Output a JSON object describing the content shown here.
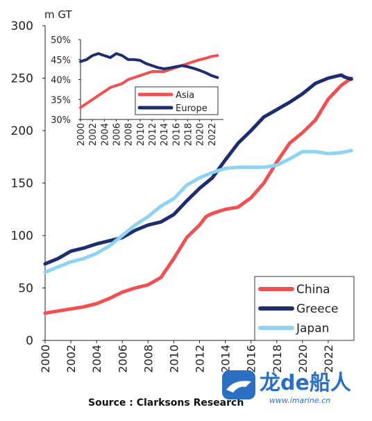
{
  "source_text": "Source : Clarksons Research",
  "watermark": {
    "brand": "龙de船人",
    "site": "www.imarine.cn"
  },
  "chart_data": [
    {
      "type": "line",
      "ylabel": "m GT",
      "ylim": [
        0,
        300
      ],
      "yticks": [
        0,
        50,
        100,
        150,
        200,
        250,
        300
      ],
      "xlim": [
        2000,
        2024
      ],
      "xticks": [
        "2000",
        "2002",
        "2004",
        "2006",
        "2008",
        "2010",
        "2012",
        "2014",
        "2016",
        "2018",
        "2020",
        "2022"
      ],
      "grid": false,
      "legend_position": "bottom-right",
      "series": [
        {
          "name": "China",
          "color": "#f05050",
          "x": [
            2000,
            2001,
            2002,
            2003,
            2004,
            2005,
            2006,
            2007,
            2008,
            2009,
            2010,
            2011,
            2012,
            2012.5,
            2013,
            2014,
            2015,
            2016,
            2017,
            2018,
            2019,
            2020,
            2021,
            2022,
            2023,
            2023.8
          ],
          "y": [
            26,
            28,
            30,
            32,
            35,
            40,
            46,
            50,
            53,
            60,
            78,
            98,
            110,
            118,
            121,
            125,
            127,
            136,
            150,
            170,
            188,
            198,
            210,
            230,
            243,
            250
          ]
        },
        {
          "name": "Greece",
          "color": "#1e2d6e",
          "x": [
            2000,
            2001,
            2002,
            2003,
            2004,
            2005,
            2006,
            2007,
            2008,
            2009,
            2010,
            2011,
            2012,
            2013,
            2014,
            2015,
            2016,
            2017,
            2018,
            2019,
            2020,
            2021,
            2022,
            2023,
            2023.3,
            2023.8
          ],
          "y": [
            73,
            78,
            85,
            88,
            92,
            95,
            98,
            105,
            110,
            113,
            120,
            133,
            145,
            155,
            172,
            188,
            200,
            213,
            220,
            227,
            235,
            245,
            250,
            253,
            251,
            249
          ]
        },
        {
          "name": "Japan",
          "color": "#8fd3f0",
          "x": [
            2000,
            2001,
            2002,
            2003,
            2004,
            2005,
            2006,
            2007,
            2008,
            2009,
            2010,
            2011,
            2012,
            2013,
            2014,
            2015,
            2016,
            2017,
            2018,
            2019,
            2020,
            2021,
            2022,
            2023,
            2023.8
          ],
          "y": [
            65,
            70,
            75,
            78,
            83,
            90,
            100,
            110,
            118,
            128,
            135,
            148,
            155,
            160,
            164,
            165,
            165,
            165,
            167,
            173,
            180,
            180,
            178,
            179,
            181
          ]
        }
      ]
    },
    {
      "type": "line",
      "ylim": [
        30,
        50
      ],
      "yticks": [
        "30%",
        "35%",
        "40%",
        "45%",
        "50%"
      ],
      "ytick_values": [
        30,
        35,
        40,
        45,
        50
      ],
      "xlim": [
        2000,
        2024
      ],
      "xticks": [
        "2000",
        "2002",
        "2004",
        "2006",
        "2008",
        "2010",
        "2012",
        "2014",
        "2016",
        "2018",
        "2020",
        "2022"
      ],
      "legend_position": "middle-right",
      "series": [
        {
          "name": "Asia",
          "color": "#f05050",
          "x": [
            2000,
            2001,
            2002,
            2003,
            2004,
            2005,
            2006,
            2007,
            2008,
            2009,
            2010,
            2011,
            2012,
            2013,
            2014,
            2015,
            2016,
            2017,
            2018,
            2019,
            2020,
            2021,
            2022,
            2023
          ],
          "y": [
            33,
            34,
            35,
            36,
            37,
            38,
            38.5,
            39,
            40,
            40.5,
            41,
            41.5,
            42,
            42,
            42,
            42.5,
            43,
            43.5,
            44,
            44.5,
            45,
            45.3,
            45.8,
            46
          ]
        },
        {
          "name": "Europe",
          "color": "#1e2d6e",
          "x": [
            2000,
            2001,
            2002,
            2003,
            2004,
            2005,
            2006,
            2007,
            2008,
            2009,
            2010,
            2011,
            2012,
            2013,
            2014,
            2015,
            2016,
            2017,
            2018,
            2019,
            2020,
            2021,
            2022,
            2023
          ],
          "y": [
            44.5,
            45,
            46,
            46.5,
            46,
            45.5,
            46.5,
            46,
            45,
            45,
            44.8,
            44,
            43.5,
            43,
            42.7,
            42.9,
            43.2,
            43.5,
            43.2,
            42.8,
            42.3,
            41.7,
            41,
            40.5
          ]
        }
      ]
    }
  ]
}
